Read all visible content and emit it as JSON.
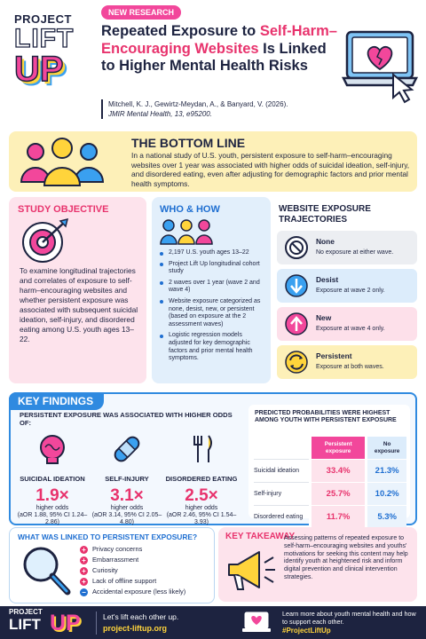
{
  "header": {
    "logo": [
      "PROJECT",
      "LIFT",
      "UP"
    ],
    "tag": "NEW RESEARCH",
    "title": [
      "Repeated Exposure to",
      "Self-Harm–Encouraging Websites",
      "Is Linked to Higher Mental Health Risks"
    ],
    "citation": {
      "authors": "Mitchell, K. J., Gewirtz-Meydan, A., & Banyard, V. (2026).",
      "journal": "JMIR Mental Health, 13, e95200."
    }
  },
  "bottom_line": {
    "heading": "THE BOTTOM LINE",
    "text": "In a national study of U.S. youth, persistent exposure to self-harm–encouraging websites over 1 year was associated with higher odds of suicidal ideation, self-injury, and disordered eating, even after adjusting for demographic factors and prior mental health symptoms."
  },
  "study_objective": {
    "heading": "STUDY OBJECTIVE",
    "text": "To examine longitudinal trajectories and correlates of exposure to self-harm–encouraging websites and whether persistent exposure was associated with subsequent suicidal ideation, self-injury, and disordered eating among U.S. youth ages 13–22."
  },
  "who_how": {
    "heading": "WHO & HOW",
    "bullets": [
      "2,197 U.S. youth ages 13–22",
      "Project Lift Up longitudinal cohort study",
      "2 waves over 1 year (wave 2 and wave 4)",
      "Website exposure categorized as none, desist, new, or persistent (based on exposure at the 2 assessment waves)",
      "Logistic regression models adjusted for key demographic factors and prior mental health symptoms."
    ]
  },
  "trajectories": {
    "heading": "WEBSITE EXPOSURE TRAJECTORIES",
    "items": [
      {
        "name": "None",
        "description": "No exposure at either wave."
      },
      {
        "name": "Desist",
        "description": "Exposure at wave 2 only."
      },
      {
        "name": "New",
        "description": "Exposure at wave 4 only."
      },
      {
        "name": "Persistent",
        "description": "Exposure at both waves."
      }
    ]
  },
  "key_findings": {
    "heading": "KEY FINDINGS",
    "odds": {
      "heading": "PERSISTENT EXPOSURE WAS ASSOCIATED WITH HIGHER ODDS OF:",
      "items": [
        {
          "label": "SUICIDAL IDEATION",
          "value": "1.9×",
          "caption": "higher odds",
          "detail": "(aOR 1.88, 95% CI 1.24–2.86)"
        },
        {
          "label": "SELF-INJURY",
          "value": "3.1×",
          "caption": "higher odds",
          "detail": "(aOR 3.14, 95% CI 2.05–4.80)"
        },
        {
          "label": "DISORDERED EATING",
          "value": "2.5×",
          "caption": "higher odds",
          "detail": "(aOR 2.46, 95% CI 1.54–3.93)"
        }
      ]
    },
    "probabilities": {
      "heading": "PREDICTED PROBABILITIES WERE HIGHEST AMONG YOUTH WITH PERSISTENT EXPOSURE",
      "columns": [
        "Persistent exposure",
        "No exposure"
      ],
      "rows": [
        {
          "label": "Suicidal ideation",
          "values": [
            "33.4%",
            "21.3%"
          ]
        },
        {
          "label": "Self-injury",
          "values": [
            "25.7%",
            "10.2%"
          ]
        },
        {
          "label": "Disordered eating",
          "values": [
            "11.7%",
            "5.3%"
          ]
        }
      ]
    }
  },
  "linked": {
    "heading": "WHAT WAS LINKED TO PERSISTENT EXPOSURE?",
    "items": [
      {
        "sign": "+",
        "text": "Privacy concerns"
      },
      {
        "sign": "+",
        "text": "Embarrassment"
      },
      {
        "sign": "+",
        "text": "Curiosity"
      },
      {
        "sign": "+",
        "text": "Lack of offline support"
      },
      {
        "sign": "−",
        "text": "Accidental exposure (less likely)"
      }
    ]
  },
  "takeaway": {
    "heading": "KEY TAKEAWAY",
    "text": "Assessing patterns of repeated exposure to self-harm–encouraging websites and youths' motivations for seeking this content may help identify youth at heightened risk and inform digital prevention and clinical intervention strategies."
  },
  "footer": {
    "logo": [
      "PROJECT",
      "LIFT",
      "UP"
    ],
    "tagline": "Let's lift each other up.",
    "url": "project-liftup.org",
    "cta": "Learn more about youth mental health and how to support each other.",
    "hashtag": "#ProjectLiftUp"
  }
}
